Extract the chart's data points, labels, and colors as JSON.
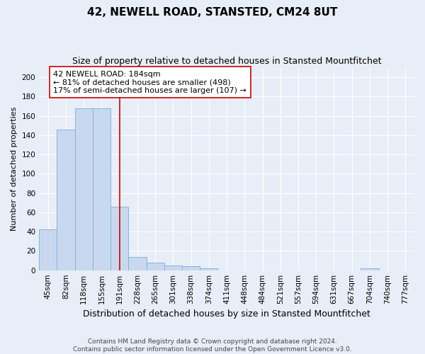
{
  "title": "42, NEWELL ROAD, STANSTED, CM24 8UT",
  "subtitle": "Size of property relative to detached houses in Stansted Mountfitchet",
  "xlabel": "Distribution of detached houses by size in Stansted Mountfitchet",
  "ylabel": "Number of detached properties",
  "footer_line1": "Contains HM Land Registry data © Crown copyright and database right 2024.",
  "footer_line2": "Contains public sector information licensed under the Open Government Licence v3.0.",
  "bin_labels": [
    "45sqm",
    "82sqm",
    "118sqm",
    "155sqm",
    "191sqm",
    "228sqm",
    "265sqm",
    "301sqm",
    "338sqm",
    "374sqm",
    "411sqm",
    "448sqm",
    "484sqm",
    "521sqm",
    "557sqm",
    "594sqm",
    "631sqm",
    "667sqm",
    "704sqm",
    "740sqm",
    "777sqm"
  ],
  "bar_values": [
    42,
    146,
    168,
    168,
    66,
    14,
    8,
    5,
    4,
    2,
    0,
    0,
    0,
    0,
    0,
    0,
    0,
    0,
    2,
    0,
    0
  ],
  "bar_color": "#c8d9ef",
  "bar_edge_color": "#7badd4",
  "vline_color": "#cc0000",
  "vline_x_index": 4,
  "ylim_max": 210,
  "yticks": [
    0,
    20,
    40,
    60,
    80,
    100,
    120,
    140,
    160,
    180,
    200
  ],
  "annotation_line1": "42 NEWELL ROAD: 184sqm",
  "annotation_line2": "← 81% of detached houses are smaller (498)",
  "annotation_line3": "17% of semi-detached houses are larger (107) →",
  "annotation_box_color": "#ffffff",
  "annotation_box_edge": "#cc0000",
  "bg_color": "#e8eef7",
  "grid_color": "#ffffff",
  "title_fontsize": 11,
  "subtitle_fontsize": 9,
  "ylabel_fontsize": 8,
  "xlabel_fontsize": 9,
  "tick_fontsize": 7.5,
  "footer_fontsize": 6.5,
  "annotation_fontsize": 8
}
